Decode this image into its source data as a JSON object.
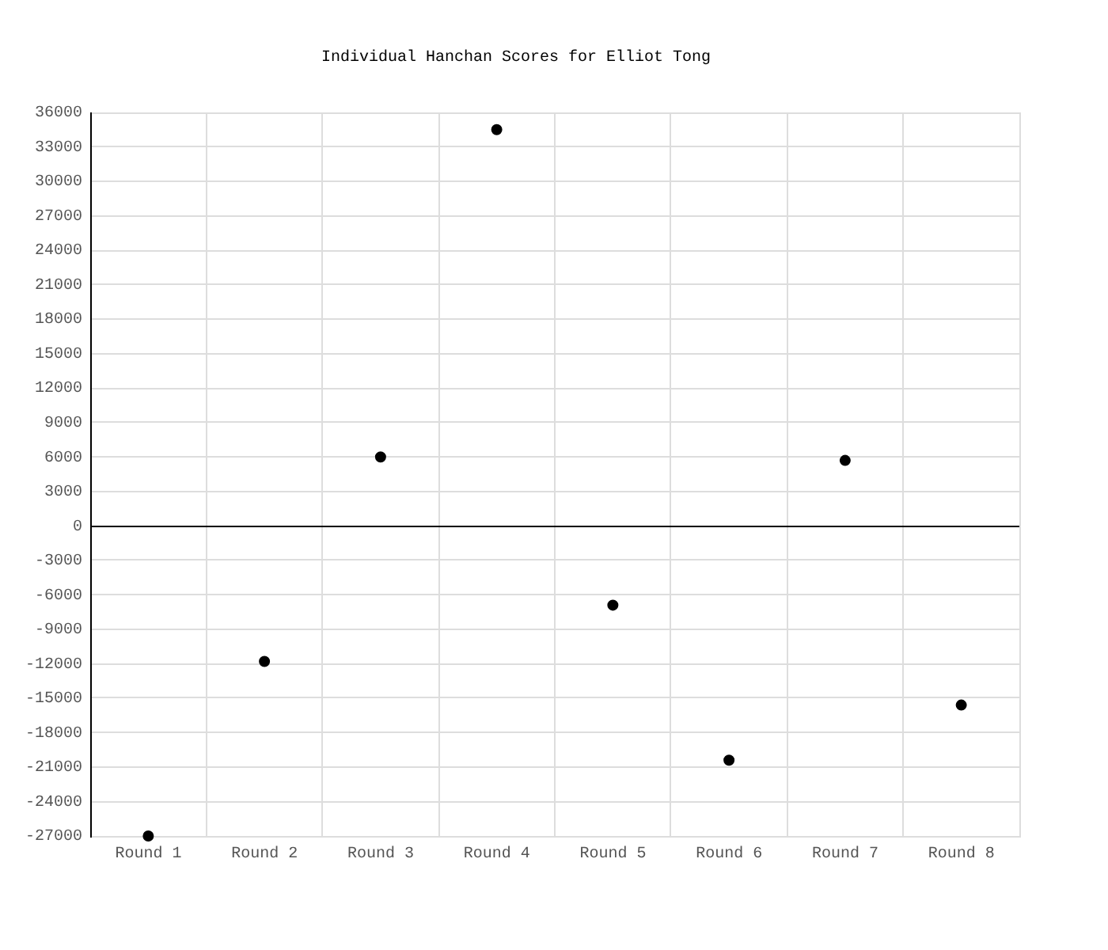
{
  "chart_data": {
    "type": "scatter",
    "title": "Individual Hanchan Scores for Elliot Tong",
    "categories": [
      "Round 1",
      "Round 2",
      "Round 3",
      "Round 4",
      "Round 5",
      "Round 6",
      "Round 7",
      "Round 8"
    ],
    "series": [
      {
        "color": "#000000",
        "values": [
          -27000,
          -11800,
          6000,
          34500,
          -6900,
          -20400,
          5700,
          -15600
        ]
      }
    ],
    "ylim": [
      -27000,
      36000
    ],
    "yticks": [
      -27000,
      -24000,
      -21000,
      -18000,
      -15000,
      -12000,
      -9000,
      -6000,
      -3000,
      0,
      3000,
      6000,
      9000,
      12000,
      15000,
      18000,
      21000,
      24000,
      27000,
      30000,
      33000,
      36000
    ],
    "ref_lines": [
      {
        "axis": "y",
        "value": 0,
        "color": "#000000"
      }
    ],
    "grid": true,
    "legend": false,
    "marker": "circle"
  }
}
